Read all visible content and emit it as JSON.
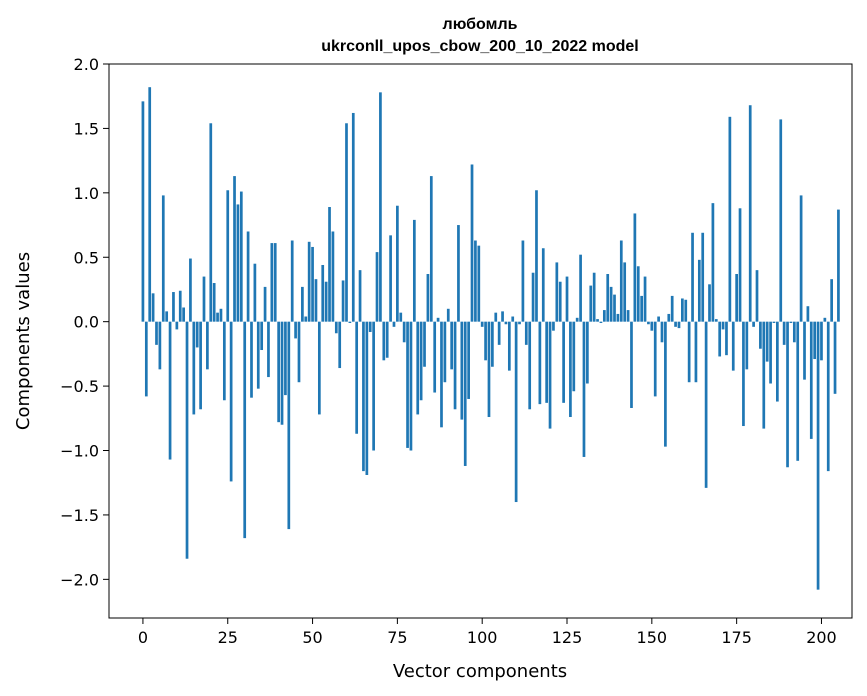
{
  "chart_data": {
    "type": "bar",
    "title": "любомль",
    "subtitle": "ukrconll_upos_cbow_200_10_2022 model",
    "xlabel": "Vector components",
    "ylabel": "Components values",
    "xlim": [
      -10,
      209
    ],
    "ylim": [
      -2.3,
      2.0
    ],
    "xticks": [
      0,
      25,
      50,
      75,
      100,
      125,
      150,
      175,
      200
    ],
    "yticks": [
      -2.0,
      -1.5,
      -1.0,
      -0.5,
      0.0,
      0.5,
      1.0,
      1.5,
      2.0
    ],
    "xtick_labels": [
      "0",
      "25",
      "50",
      "75",
      "100",
      "125",
      "150",
      "175",
      "200"
    ],
    "ytick_labels": [
      "−2.0",
      "−1.5",
      "−1.0",
      "−0.5",
      "0.0",
      "0.5",
      "1.0",
      "1.5",
      "2.0"
    ],
    "grid": false,
    "color": "#1f77b4",
    "values": [
      1.71,
      -0.58,
      1.82,
      0.22,
      -0.18,
      -0.37,
      0.98,
      0.08,
      -1.07,
      0.23,
      -0.06,
      0.24,
      0.11,
      -1.84,
      0.49,
      -0.72,
      -0.2,
      -0.68,
      0.35,
      -0.37,
      1.54,
      0.3,
      0.07,
      0.1,
      -0.61,
      1.02,
      -1.24,
      1.13,
      0.91,
      1.01,
      -1.68,
      0.7,
      -0.59,
      0.45,
      -0.52,
      -0.22,
      0.27,
      -0.43,
      0.61,
      0.61,
      -0.78,
      -0.8,
      -0.57,
      -1.61,
      0.63,
      -0.13,
      -0.47,
      0.27,
      0.04,
      0.62,
      0.58,
      0.33,
      -0.72,
      0.44,
      0.31,
      0.89,
      0.7,
      -0.09,
      -0.36,
      0.32,
      1.54,
      -0.01,
      1.62,
      -0.87,
      0.4,
      -1.16,
      -1.19,
      -0.08,
      -1.0,
      0.54,
      1.78,
      -0.3,
      -0.28,
      0.67,
      -0.04,
      0.9,
      0.07,
      -0.16,
      -0.98,
      -1.0,
      0.79,
      -0.72,
      -0.61,
      -0.35,
      0.37,
      1.13,
      -0.55,
      0.03,
      -0.82,
      -0.47,
      0.1,
      -0.37,
      -0.68,
      0.75,
      -0.76,
      -1.12,
      -0.6,
      1.22,
      0.63,
      0.59,
      -0.04,
      -0.3,
      -0.74,
      -0.35,
      0.07,
      -0.18,
      0.08,
      -0.02,
      -0.38,
      0.04,
      -1.4,
      -0.02,
      0.63,
      -0.18,
      -0.68,
      0.38,
      1.02,
      -0.64,
      0.57,
      -0.63,
      -0.83,
      -0.07,
      0.46,
      0.31,
      -0.63,
      0.35,
      -0.74,
      -0.54,
      0.03,
      0.52,
      -1.05,
      -0.48,
      0.28,
      0.38,
      0.02,
      -0.01,
      0.09,
      0.37,
      0.27,
      0.21,
      0.06,
      0.63,
      0.46,
      0.09,
      -0.67,
      0.84,
      0.43,
      0.2,
      0.35,
      -0.02,
      -0.07,
      -0.58,
      0.04,
      -0.16,
      -0.97,
      0.06,
      0.2,
      -0.04,
      -0.05,
      0.18,
      0.17,
      -0.47,
      0.69,
      -0.47,
      0.48,
      0.69,
      -1.29,
      0.29,
      0.92,
      0.02,
      -0.27,
      -0.06,
      -0.26,
      1.59,
      -0.38,
      0.37,
      0.88,
      -0.81,
      -0.37,
      1.68,
      -0.04,
      0.4,
      -0.21,
      -0.83,
      -0.31,
      -0.48,
      -0.01,
      -0.62,
      1.57,
      -0.18,
      -1.13,
      -0.01,
      -0.16,
      -1.08,
      0.98,
      -0.45,
      0.12,
      -0.91,
      -0.29,
      -2.08,
      -0.3,
      0.03,
      -1.16,
      0.33,
      -0.56,
      0.87
    ]
  }
}
